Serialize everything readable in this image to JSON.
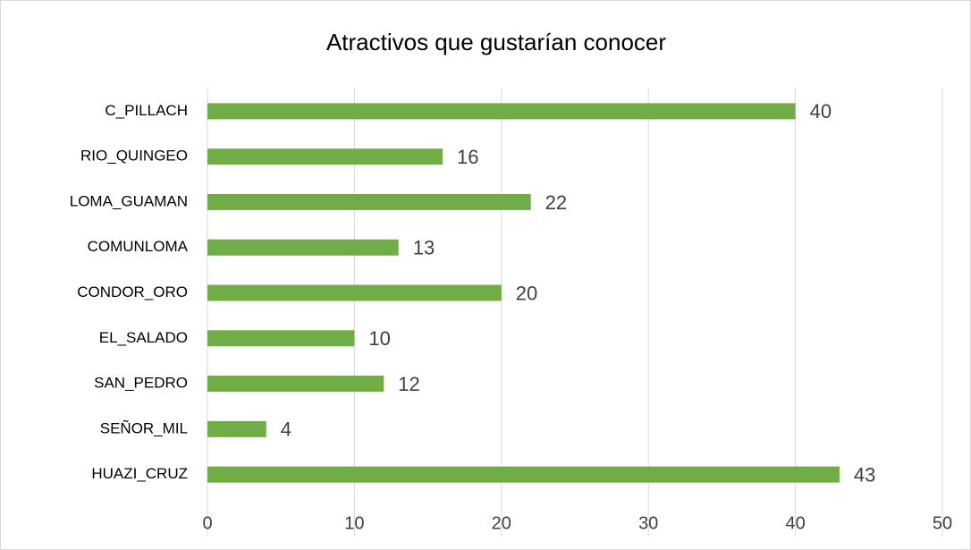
{
  "chart_data": {
    "type": "bar",
    "orientation": "horizontal",
    "title": "Atractivos que gustarían conocer",
    "categories": [
      "C_PILLACH",
      "RIO_QUINGEO",
      "LOMA_GUAMAN",
      "COMUNLOMA",
      "CONDOR_ORO",
      "EL_SALADO",
      "SAN_PEDRO",
      "SEÑOR_MIL",
      "HUAZI_CRUZ"
    ],
    "values": [
      40,
      16,
      22,
      13,
      20,
      10,
      12,
      4,
      43
    ],
    "color": "#70ad47",
    "xlim": [
      0,
      50
    ],
    "xticks": [
      0,
      10,
      20,
      30,
      40,
      50
    ],
    "grid": true
  }
}
